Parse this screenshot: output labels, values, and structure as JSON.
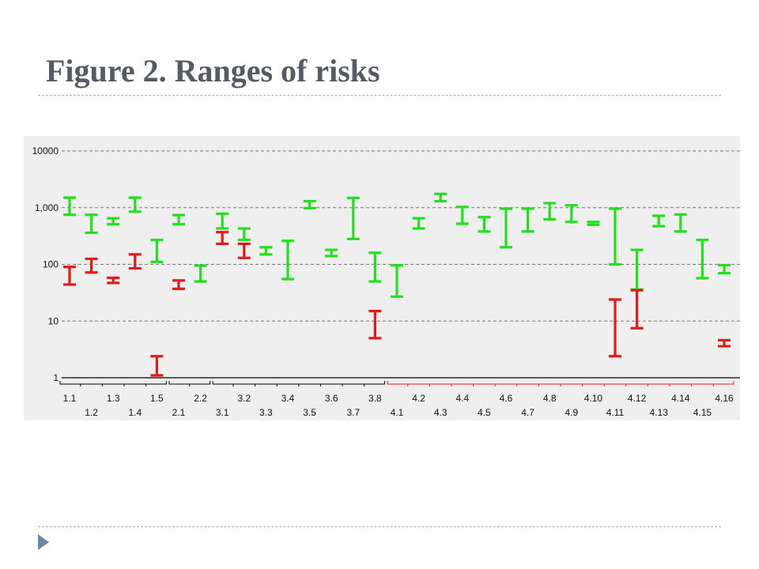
{
  "title": "Figure 2. Ranges of risks",
  "colors": {
    "green": "#22e01e",
    "red": "#e11a1a",
    "grid": "#777777",
    "panel": "#efefef",
    "title": "#555a63",
    "rule": "#9fb3c4"
  },
  "icons": {
    "bullet": "triangle-bullet-icon"
  },
  "chart_data": {
    "type": "range",
    "title": "",
    "xlabel": "",
    "ylabel": "",
    "yscale": "log",
    "ylim": [
      1,
      10000
    ],
    "yticks": [
      1,
      10,
      100,
      1000,
      10000
    ],
    "yticklabels": [
      "1",
      "10",
      "100",
      "1,000",
      "10000"
    ],
    "grid": true,
    "categories": [
      "1.1",
      "1.2",
      "1.3",
      "1.4",
      "1.5",
      "2.1",
      "2.2",
      "3.1",
      "3.2",
      "3.3",
      "3.4",
      "3.5",
      "3.6",
      "3.7",
      "3.8",
      "4.1",
      "4.2",
      "4.3",
      "4.4",
      "4.5",
      "4.6",
      "4.7",
      "4.8",
      "4.9",
      "4.10",
      "4.11",
      "4.12",
      "4.13",
      "4.14",
      "4.15",
      "4.16"
    ],
    "series": [
      {
        "color": "green",
        "ranges": [
          [
            750,
            1500
          ],
          [
            360,
            750
          ],
          [
            510,
            650
          ],
          [
            850,
            1500
          ],
          [
            110,
            270
          ],
          [
            510,
            740
          ],
          [
            50,
            95
          ],
          [
            430,
            780
          ],
          [
            270,
            430
          ],
          [
            150,
            200
          ],
          [
            55,
            260
          ],
          [
            980,
            1300
          ],
          [
            140,
            180
          ],
          [
            280,
            1480
          ],
          [
            50,
            160
          ],
          [
            27,
            96
          ],
          [
            430,
            650
          ],
          [
            1300,
            1750
          ],
          [
            520,
            1030
          ],
          [
            380,
            680
          ],
          [
            200,
            960
          ],
          [
            380,
            960
          ],
          [
            620,
            1200
          ],
          [
            560,
            1100
          ],
          [
            500,
            560
          ],
          [
            100,
            960
          ],
          [
            36,
            180
          ],
          [
            470,
            720
          ],
          [
            380,
            760
          ],
          [
            57,
            270
          ],
          [
            70,
            97
          ]
        ]
      },
      {
        "color": "red",
        "ranges": [
          [
            44,
            90
          ],
          [
            72,
            125
          ],
          [
            47,
            58
          ],
          [
            85,
            150
          ],
          [
            1.1,
            2.4
          ],
          [
            37,
            52
          ],
          null,
          [
            230,
            370
          ],
          [
            130,
            230
          ],
          null,
          null,
          null,
          null,
          null,
          [
            5,
            15
          ],
          null,
          null,
          null,
          null,
          null,
          null,
          null,
          null,
          null,
          null,
          [
            2.4,
            24
          ],
          [
            7.5,
            35
          ],
          null,
          null,
          null,
          [
            3.6,
            4.6
          ]
        ]
      }
    ],
    "groups": [
      {
        "start": "1.1",
        "end": "1.5",
        "color": "black"
      },
      {
        "start": "2.1",
        "end": "2.2",
        "color": "black"
      },
      {
        "start": "3.1",
        "end": "3.8",
        "color": "black"
      },
      {
        "start": "4.1",
        "end": "4.16",
        "color": "red"
      }
    ]
  }
}
